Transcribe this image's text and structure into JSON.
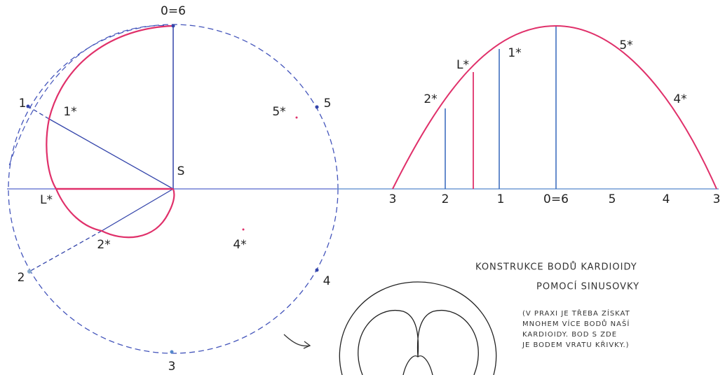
{
  "circle_labels": {
    "top": "0=6",
    "p1": "1",
    "p1s": "1*",
    "p5s": "5*",
    "p5": "5",
    "center": "S",
    "ls": "L*",
    "p2s": "2*",
    "p4s": "4*",
    "p2": "2",
    "p4": "4",
    "p3": "3"
  },
  "axis_labels": [
    "3",
    "2",
    "1",
    "0=6",
    "5",
    "4",
    "3"
  ],
  "curve_labels": {
    "p2s": "2*",
    "ls": "L*",
    "p1s": "1*",
    "p5s": "5*",
    "p4s": "4*"
  },
  "note": {
    "title_1": "KONSTRUKCE BODŮ KARDIOIDY",
    "title_2": "POMOCÍ SINUSOVKY",
    "lines": [
      "(V PRAXI JE TŘEBA ZÍSKAT",
      "MNOHEM VÍCE BODŮ NAŠÍ",
      "KARDIOIDY. BOD S ZDE",
      "JE BODEM VRATU KŘIVKY.)"
    ]
  }
}
